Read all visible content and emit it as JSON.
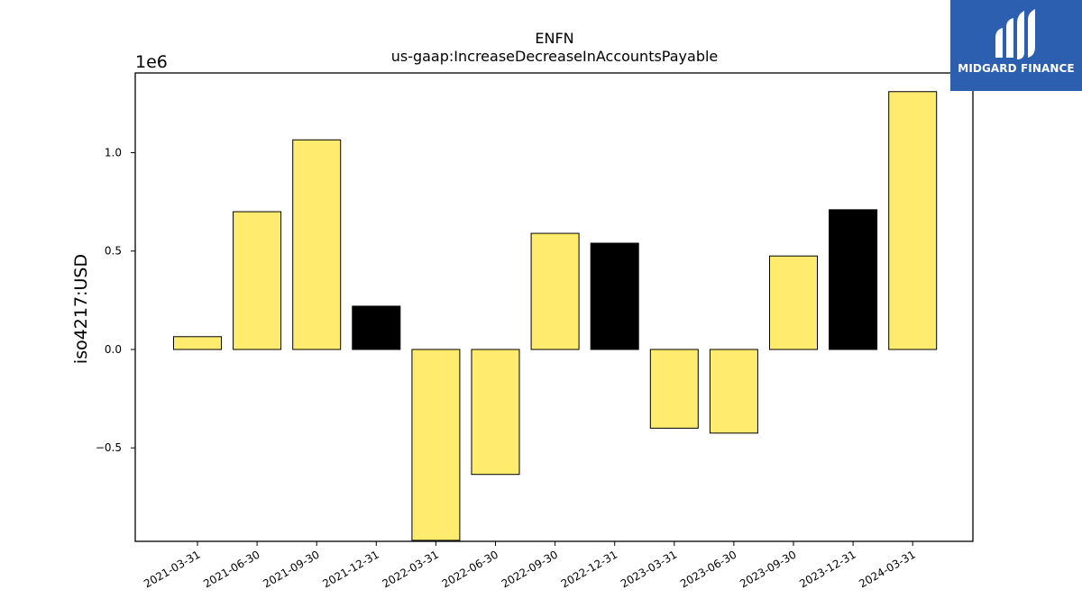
{
  "chart_data": {
    "type": "bar",
    "title": "ENFN",
    "subtitle": "us-gaap:IncreaseDecreaseInAccountsPayable",
    "xlabel": "",
    "ylabel": "iso4217:USD",
    "y_offset_label": "1e6",
    "categories": [
      "2021-03-31",
      "2021-06-30",
      "2021-09-30",
      "2021-12-31",
      "2022-03-31",
      "2022-06-30",
      "2022-09-30",
      "2022-12-31",
      "2023-03-31",
      "2023-06-30",
      "2023-09-30",
      "2023-12-31",
      "2024-03-31"
    ],
    "values": [
      0.065,
      0.7,
      1.065,
      0.22,
      -0.97,
      -0.635,
      0.59,
      0.54,
      -0.4,
      -0.425,
      0.475,
      0.71,
      1.31
    ],
    "ylim": [
      -0.975,
      1.405
    ],
    "yticks": [
      -0.5,
      0.0,
      0.5,
      1.0
    ],
    "ytick_labels": [
      "−0.5",
      "0.0",
      "0.5",
      "1.0"
    ],
    "bar_colors": [
      "#ffec6e",
      "#ffec6e",
      "#ffec6e",
      "#000000",
      "#ffec6e",
      "#ffec6e",
      "#ffec6e",
      "#000000",
      "#ffec6e",
      "#ffec6e",
      "#ffec6e",
      "#000000",
      "#ffec6e"
    ],
    "grid": false,
    "legend": "none"
  },
  "logo": {
    "text": "MIDGARD FINANCE",
    "icon": "midgard-logo-icon",
    "color": "#2d5fb0"
  }
}
